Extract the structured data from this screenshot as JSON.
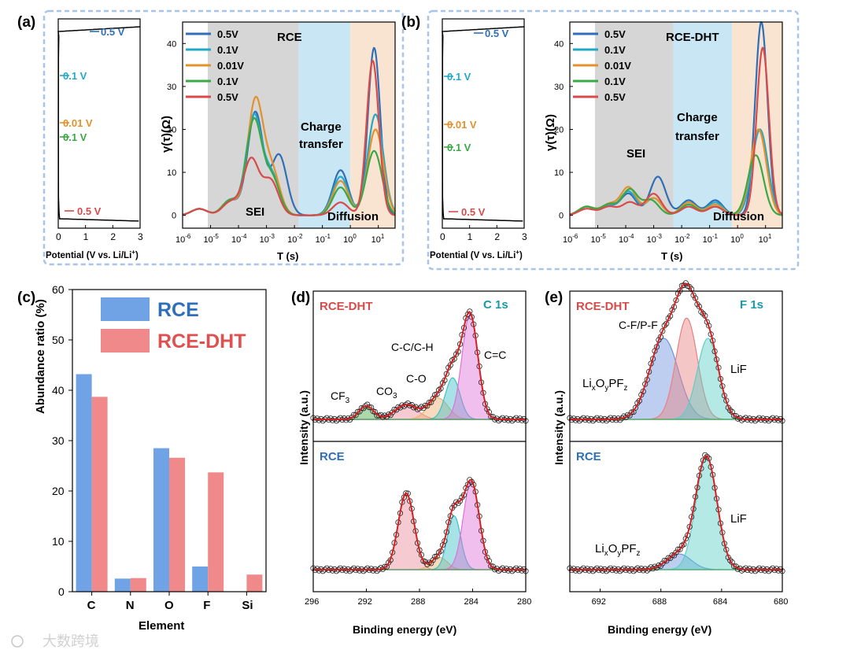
{
  "chart_data": [
    {
      "panel": "(a)",
      "type": "line",
      "title": "RCE",
      "subtype": "voltage_profile",
      "xlabel": "Potential (V vs. Li/Li",
      "xlabel_sup": "+",
      "xlabel_end": ")",
      "xlim": [
        0,
        3
      ],
      "xticks": [
        "0",
        "1",
        "2",
        "3"
      ],
      "markers": [
        {
          "label": "0.5 V",
          "color": "#2e6fb7",
          "potential": 0.5
        },
        {
          "label": "0.1 V",
          "color": "#22a8c8",
          "potential": 0.1
        },
        {
          "label": "0.01 V",
          "color": "#e3912c",
          "potential": 0.01
        },
        {
          "label": "0.1 V",
          "color": "#3aa845",
          "potential": 0.1
        },
        {
          "label": "0.5 V",
          "color": "#d94a4a",
          "potential": 0.5
        }
      ]
    },
    {
      "panel": "(a)",
      "type": "line",
      "title": "RCE",
      "subtype": "DRT",
      "ylabel": "γ(τ)(Ω)",
      "xlabel": "T (s)",
      "ylim": [
        -3,
        45
      ],
      "yticks": [
        0,
        10,
        20,
        30,
        40
      ],
      "xlim_log": [
        -6,
        1.6
      ],
      "xticks_exp": [
        -6,
        -5,
        -4,
        -3,
        -2,
        -1,
        0,
        1
      ],
      "regions": [
        {
          "label": "SEI",
          "from": -5.1,
          "to": -1.85,
          "color": "#d6d6d6"
        },
        {
          "label": "Charge\ntransfer",
          "from": -1.85,
          "to": 0.0,
          "color": "#c8e6f3"
        },
        {
          "label": "Diffusion",
          "from": 0.0,
          "to": 1.6,
          "color": "#f9e4d2"
        }
      ],
      "series": [
        {
          "name": "0.5V",
          "color": "#2e6fb7",
          "peaks": [
            [
              -5.4,
              1.5
            ],
            [
              -4.3,
              3.5
            ],
            [
              -3.4,
              24
            ],
            [
              -2.55,
              14
            ],
            [
              -0.35,
              10.5
            ],
            [
              0.85,
              39
            ]
          ]
        },
        {
          "name": "0.1V",
          "color": "#22a8c8",
          "peaks": [
            [
              -5.4,
              1.5
            ],
            [
              -4.3,
              3.5
            ],
            [
              -3.45,
              23
            ],
            [
              -2.8,
              9
            ],
            [
              -0.35,
              9
            ],
            [
              0.9,
              23.5
            ]
          ]
        },
        {
          "name": "0.01V",
          "color": "#e3912c",
          "peaks": [
            [
              -5.4,
              1.5
            ],
            [
              -4.3,
              3.5
            ],
            [
              -3.4,
              26.5
            ],
            [
              -2.8,
              10
            ],
            [
              -0.35,
              8
            ],
            [
              0.9,
              20
            ]
          ]
        },
        {
          "name": "0.1V",
          "color": "#3aa845",
          "peaks": [
            [
              -5.4,
              1.5
            ],
            [
              -4.3,
              3.5
            ],
            [
              -3.45,
              22
            ],
            [
              -2.8,
              8.5
            ],
            [
              -0.35,
              6.5
            ],
            [
              0.85,
              15
            ]
          ]
        },
        {
          "name": "0.5V",
          "color": "#d94a4a",
          "peaks": [
            [
              -5.4,
              1.5
            ],
            [
              -4.3,
              3
            ],
            [
              -3.55,
              13
            ],
            [
              -2.85,
              8
            ],
            [
              -0.35,
              3
            ],
            [
              0.8,
              36
            ]
          ]
        }
      ],
      "annotations": [
        "SEI",
        "Charge",
        "transfer",
        "Diffusion"
      ]
    },
    {
      "panel": "(b)",
      "type": "line",
      "title": "RCE-DHT",
      "subtype": "voltage_profile",
      "xlabel": "Potential (V vs. Li/Li",
      "xlabel_sup": "+",
      "xlabel_end": ")",
      "xlim": [
        0,
        3
      ],
      "xticks": [
        "0",
        "1",
        "2",
        "3"
      ],
      "markers": [
        {
          "label": "0.5 V",
          "color": "#2e6fb7",
          "potential": 0.5
        },
        {
          "label": "0.1 V",
          "color": "#22a8c8",
          "potential": 0.1
        },
        {
          "label": "0.01 V",
          "color": "#e3912c",
          "potential": 0.01
        },
        {
          "label": "0.1 V",
          "color": "#3aa845",
          "potential": 0.1
        },
        {
          "label": "0.5 V",
          "color": "#d94a4a",
          "potential": 0.5
        }
      ]
    },
    {
      "panel": "(b)",
      "type": "line",
      "title": "RCE-DHT",
      "subtype": "DRT",
      "ylabel": "γ(τ)(Ω)",
      "xlabel": "T (s)",
      "ylim": [
        -3,
        45
      ],
      "yticks": [
        0,
        10,
        20,
        30,
        40
      ],
      "xlim_log": [
        -6,
        1.6
      ],
      "xticks_exp": [
        -6,
        -5,
        -4,
        -3,
        -2,
        -1,
        0,
        1
      ],
      "regions": [
        {
          "label": "SEI",
          "from": -5.1,
          "to": -2.3,
          "color": "#d6d6d6"
        },
        {
          "label": "Charge\ntransfer",
          "from": -2.3,
          "to": -0.2,
          "color": "#c8e6f3"
        },
        {
          "label": "Diffusion",
          "from": -0.2,
          "to": 1.6,
          "color": "#f9e4d2"
        }
      ],
      "series": [
        {
          "name": "0.5V",
          "color": "#2e6fb7",
          "peaks": [
            [
              -5.4,
              2
            ],
            [
              -4.6,
              2
            ],
            [
              -3.9,
              5
            ],
            [
              -2.85,
              9
            ],
            [
              -1.75,
              3.5
            ],
            [
              -0.8,
              3.5
            ],
            [
              0.85,
              45
            ]
          ]
        },
        {
          "name": "0.1V",
          "color": "#22a8c8",
          "peaks": [
            [
              -5.4,
              2
            ],
            [
              -4.6,
              2
            ],
            [
              -3.9,
              5.5
            ],
            [
              -3.0,
              4
            ],
            [
              -1.75,
              3
            ],
            [
              -0.8,
              3
            ],
            [
              0.8,
              20
            ]
          ]
        },
        {
          "name": "0.01V",
          "color": "#e3912c",
          "peaks": [
            [
              -5.4,
              2
            ],
            [
              -4.6,
              2.5
            ],
            [
              -3.9,
              6.5
            ],
            [
              -3.0,
              4
            ],
            [
              -1.75,
              3
            ],
            [
              -0.8,
              2.5
            ],
            [
              0.75,
              20
            ]
          ]
        },
        {
          "name": "0.1V",
          "color": "#3aa845",
          "peaks": [
            [
              -5.4,
              2
            ],
            [
              -4.6,
              2.5
            ],
            [
              -3.85,
              6
            ],
            [
              -3.1,
              3.5
            ],
            [
              -1.75,
              2.5
            ],
            [
              -0.8,
              2
            ],
            [
              0.65,
              14
            ]
          ]
        },
        {
          "name": "0.5V",
          "color": "#d94a4a",
          "peaks": [
            [
              -5.4,
              1.5
            ],
            [
              -4.6,
              2
            ],
            [
              -3.85,
              3
            ],
            [
              -3.0,
              5
            ],
            [
              -1.75,
              2
            ],
            [
              -0.8,
              2
            ],
            [
              0.9,
              39
            ]
          ]
        }
      ],
      "annotations": [
        "SEI",
        "Charge",
        "transfer",
        "Diffusion"
      ]
    },
    {
      "panel": "(c)",
      "type": "bar",
      "categories": [
        "C",
        "N",
        "O",
        "F",
        "Si"
      ],
      "series": [
        {
          "name": "RCE",
          "color": "#6fa3e6",
          "values": [
            43.2,
            2.6,
            28.5,
            5.0,
            0
          ]
        },
        {
          "name": "RCE-DHT",
          "color": "#f08a8a",
          "values": [
            38.7,
            2.7,
            26.6,
            23.7,
            3.4
          ]
        }
      ],
      "xlabel": "Element",
      "ylabel": "Abundance ratio (%)",
      "ylim": [
        0,
        60
      ],
      "yticks": [
        0,
        10,
        20,
        30,
        40,
        50,
        60
      ]
    },
    {
      "panel": "(d)",
      "type": "line",
      "title": "C 1s",
      "subtype": "XPS",
      "xlabel": "Binding energy (eV)",
      "ylabel": "Intensity (a.u.)",
      "xlim": [
        296,
        280
      ],
      "xticks": [
        296,
        292,
        288,
        284,
        280
      ],
      "subplots": [
        {
          "label": "RCE-DHT",
          "label_color": "#d94a4a",
          "components": [
            {
              "name": "CF3",
              "center": 292.0,
              "height": 0.12,
              "width": 0.55,
              "color": "#4aa845"
            },
            {
              "name": "CO3",
              "center": 289.0,
              "height": 0.13,
              "width": 0.85,
              "color": "#e88a9a"
            },
            {
              "name": "C-O",
              "center": 286.6,
              "height": 0.19,
              "width": 0.75,
              "color": "#f0b070"
            },
            {
              "name": "C-C/C-H",
              "center": 285.5,
              "height": 0.37,
              "width": 0.55,
              "color": "#3cc0c8"
            },
            {
              "name": "C=C",
              "center": 284.2,
              "height": 0.93,
              "width": 0.6,
              "color": "#e070d8"
            }
          ]
        },
        {
          "label": "RCE",
          "label_color": "#2e6fb7",
          "components": [
            {
              "name": "CO3",
              "center": 289.0,
              "height": 0.68,
              "width": 0.6,
              "color": "#e88a9a"
            },
            {
              "name": "C-O",
              "center": 286.5,
              "height": 0.11,
              "width": 0.6,
              "color": "#f0b070"
            },
            {
              "name": "C-C/C-H",
              "center": 285.4,
              "height": 0.48,
              "width": 0.5,
              "color": "#3cc0c8"
            },
            {
              "name": "C=C",
              "center": 284.1,
              "height": 0.78,
              "width": 0.6,
              "color": "#e070d8"
            }
          ]
        }
      ],
      "annotations": [
        "CF",
        "3",
        "CO",
        "3",
        "C-O",
        "C-C/C-H",
        "C=C"
      ]
    },
    {
      "panel": "(e)",
      "type": "line",
      "title": "F 1s",
      "subtype": "XPS",
      "xlabel": "Binding energy (eV)",
      "ylabel": "Intensity (a.u.)",
      "xlim": [
        694,
        680
      ],
      "xticks": [
        692,
        688,
        684,
        680
      ],
      "subplots": [
        {
          "label": "RCE-DHT",
          "label_color": "#d94a4a",
          "components": [
            {
              "name": "LixOyPFz",
              "center": 687.8,
              "height": 0.72,
              "width": 0.95,
              "color": "#6f93dd"
            },
            {
              "name": "C-F/P-F",
              "center": 686.3,
              "height": 0.9,
              "width": 0.7,
              "color": "#e88080"
            },
            {
              "name": "LiF",
              "center": 684.9,
              "height": 0.72,
              "width": 0.7,
              "color": "#5ccfc5"
            }
          ]
        },
        {
          "label": "RCE",
          "label_color": "#2e6fb7",
          "components": [
            {
              "name": "LixOyPFz",
              "center": 686.8,
              "height": 0.14,
              "width": 0.8,
              "color": "#6f93dd"
            },
            {
              "name": "LiF",
              "center": 685.0,
              "height": 1.0,
              "width": 0.7,
              "color": "#5ccfc5"
            }
          ]
        }
      ],
      "annotations": [
        "C-F/P-F",
        "LiF",
        "Li",
        "x",
        "O",
        "y",
        "PF",
        "z"
      ]
    }
  ],
  "panel_labels": [
    "(a)",
    "(b)",
    "(c)",
    "(d)",
    "(e)"
  ],
  "watermark": "大数跨境",
  "colors": {
    "frame": "#a9c4ea",
    "axis": "#000000",
    "fit": "#d42020"
  }
}
